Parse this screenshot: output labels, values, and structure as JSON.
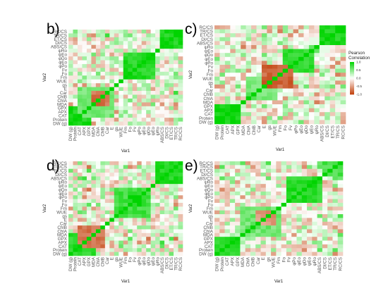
{
  "chart_data": {
    "type": "heatmap",
    "color_scale": {
      "title_lines": [
        "Pearson",
        "Correlation"
      ],
      "range": [
        -1,
        1
      ],
      "ticks": [
        "1.0",
        "0.5",
        "0.0",
        "-0.5",
        "-1.0"
      ],
      "tick_values": [
        1.0,
        0.5,
        0.0,
        -0.5,
        -1.0
      ],
      "high_color": "#00d400",
      "mid_color": "#ffffff",
      "low_color": "#c2410c"
    },
    "x_labels": [
      "DW (g)",
      "Protein",
      "CAT",
      "APX",
      "GPX",
      "MDA",
      "ChlA",
      "ChlB",
      "Car",
      "E",
      "gs",
      "WUE",
      "Fm",
      "Fo",
      "Fv",
      "φPo",
      "φEo",
      "φDo",
      "ψEo",
      "ψRo",
      "ABS/CS",
      "DI/CS",
      "ET/CS",
      "TR/CS",
      "RC/CS"
    ],
    "y_labels": [
      "RC/CS",
      "TR/CS",
      "ET/CS",
      "DI/CS",
      "ABS/CS",
      "ψRo",
      "ψEo",
      "φDo",
      "φEo",
      "φPo",
      "Fv",
      "Fo",
      "Fm",
      "WUE",
      "gs",
      "E",
      "Car",
      "ChlB",
      "ChlA",
      "MDA",
      "GPX",
      "APX",
      "CAT",
      "Protein",
      "DW (g)"
    ],
    "panels": [
      {
        "label": "b)",
        "xlabel": "Var1",
        "ylabel": "Var2",
        "seed": 11,
        "blocks": [
          [
            0,
            4,
            0.9
          ],
          [
            12,
            18,
            0.85
          ],
          [
            2,
            9,
            0.55
          ],
          [
            20,
            24,
            0.9
          ],
          [
            5,
            8,
            -0.75
          ]
        ]
      },
      {
        "label": "c)",
        "xlabel": "Var1",
        "ylabel": "Var2",
        "seed": 23,
        "blocks": [
          [
            0,
            4,
            0.95
          ],
          [
            13,
            18,
            0.8
          ],
          [
            6,
            11,
            0.55
          ],
          [
            20,
            24,
            0.9
          ],
          [
            9,
            14,
            -0.8
          ]
        ]
      },
      {
        "label": "d)",
        "xlabel": "Var1",
        "ylabel": "Var2",
        "seed": 37,
        "blocks": [
          [
            0,
            5,
            0.85
          ],
          [
            10,
            17,
            0.75
          ],
          [
            2,
            7,
            -0.7
          ],
          [
            19,
            24,
            0.85
          ],
          [
            13,
            16,
            0.9
          ]
        ]
      },
      {
        "label": "e)",
        "xlabel": "Var1",
        "ylabel": "Var2",
        "seed": 51,
        "blocks": [
          [
            0,
            4,
            0.8
          ],
          [
            14,
            20,
            0.85
          ],
          [
            5,
            12,
            0.55
          ],
          [
            21,
            24,
            0.7
          ],
          [
            8,
            11,
            -0.55
          ]
        ]
      }
    ]
  }
}
